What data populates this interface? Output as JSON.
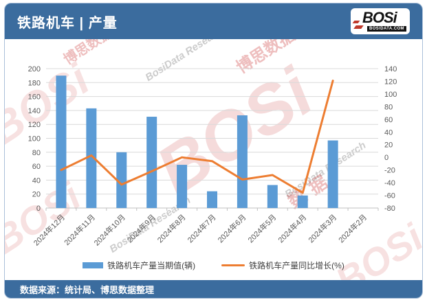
{
  "header": {
    "title": "铁路机车 | 产量",
    "logo": {
      "text": "BOSi",
      "sub": "BOSIDATA.COM"
    }
  },
  "footer": {
    "source": "数据来源：统计局、博思数据整理"
  },
  "legend": {
    "bar_label": "铁路机车产量当期值(辆)",
    "line_label": "铁路机车产量同比增长(%)"
  },
  "watermarks": {
    "bosi": "BOSi",
    "cn": "博思数据",
    "research": "BosiData Research",
    "shuju": "数据"
  },
  "colors": {
    "brand_blue": "#3B6C9E",
    "bar_blue": "#5B9BD5",
    "line_orange": "#ED7D31",
    "grid": "#D9D9D9",
    "axis_line": "#BFBFBF",
    "axis_text": "#595959",
    "watermark_red": "#C62828",
    "watermark_gray": "#787878",
    "frame_border": "#A9BFD9"
  },
  "chart_data": {
    "type": "bar",
    "subtype": "combo-bar-line-dual-axis",
    "categories": [
      "2024年12月",
      "2024年11月",
      "2024年10月",
      "2024年9月",
      "2024年8月",
      "2024年7月",
      "2024年6月",
      "2024年5月",
      "2024年4月",
      "2024年3月",
      "2024年2月"
    ],
    "series": [
      {
        "name": "铁路机车产量当期值(辆)",
        "type": "bar",
        "axis": "left",
        "color": "#5B9BD5",
        "values": [
          190,
          143,
          80,
          131,
          62,
          24,
          133,
          33,
          18,
          97,
          null
        ]
      },
      {
        "name": "铁路机车产量同比增长(%)",
        "type": "line",
        "axis": "right",
        "color": "#ED7D31",
        "values": [
          -20,
          3,
          -43,
          -22,
          0,
          -6,
          -35,
          -28,
          -56,
          121,
          null
        ]
      }
    ],
    "left_axis": {
      "min": 0,
      "max": 200,
      "step": 20
    },
    "right_axis": {
      "min": -80,
      "max": 140,
      "step": 20
    },
    "grid": true,
    "legend_position": "bottom",
    "x_label_rotation": 45
  }
}
